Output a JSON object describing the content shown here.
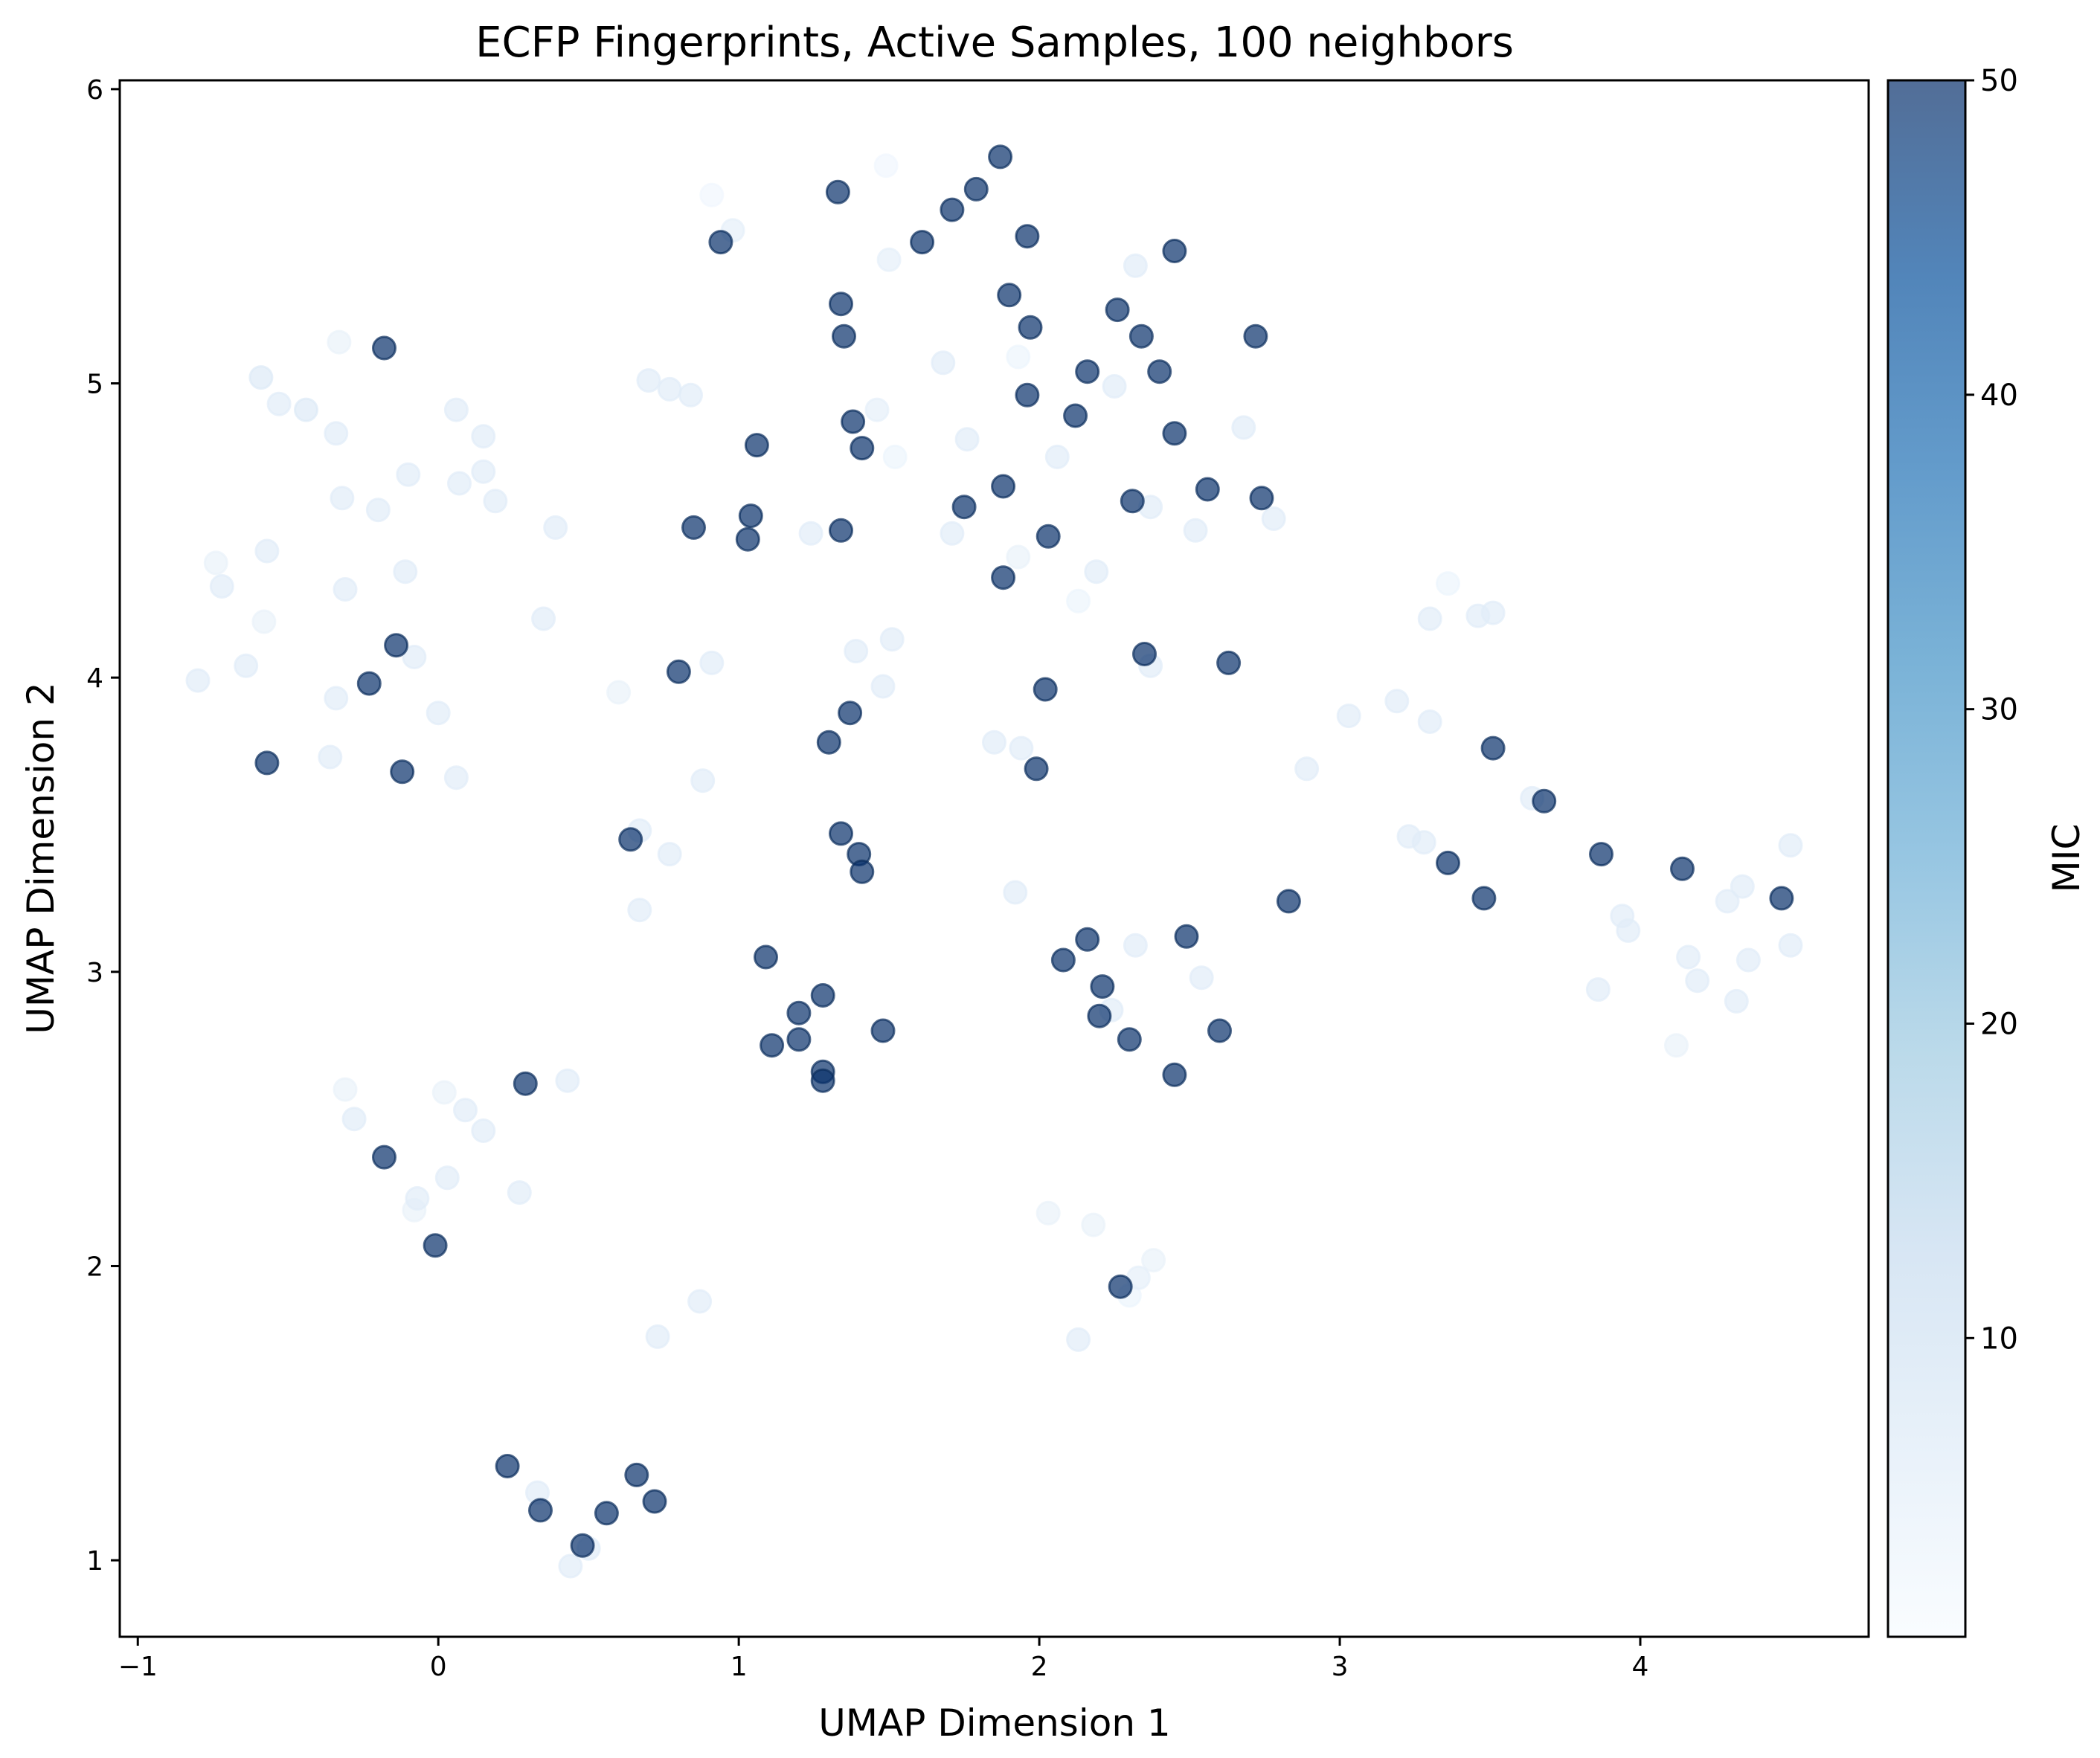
{
  "chart_data": {
    "type": "scatter",
    "title": "ECFP Fingerprints, Active Samples, 100 neighbors",
    "xlabel": "UMAP Dimension 1",
    "ylabel": "UMAP Dimension 2",
    "xlim": [
      -1.06,
      4.76
    ],
    "ylim": [
      0.74,
      6.03
    ],
    "xticks": [
      -1,
      0,
      1,
      2,
      3,
      4
    ],
    "xtick_labels": [
      "−1",
      "0",
      "1",
      "2",
      "3",
      "4"
    ],
    "yticks": [
      1,
      2,
      3,
      4,
      5,
      6
    ],
    "ytick_labels": [
      "1",
      "2",
      "3",
      "4",
      "5",
      "6"
    ],
    "grid": false,
    "legend": "none",
    "colorbar": {
      "label": "MIC",
      "range": [
        0.5,
        50
      ],
      "ticks": [
        10,
        20,
        30,
        40,
        50
      ],
      "tick_labels": [
        "10",
        "20",
        "30",
        "40",
        "50"
      ],
      "colormap": "Blues",
      "alpha": 0.7
    },
    "colors": {
      "low": "#f7fbff",
      "mid_low": "#c6dbef",
      "mid": "#6baed6",
      "mid_high": "#2171b5",
      "high": "#08306b",
      "edge_high": "#0b2e5c"
    },
    "points": [
      {
        "x": 1.87,
        "y": 5.77,
        "mic": 50
      },
      {
        "x": 1.33,
        "y": 5.65,
        "mic": 50
      },
      {
        "x": 1.79,
        "y": 5.66,
        "mic": 50
      },
      {
        "x": 1.71,
        "y": 5.59,
        "mic": 50
      },
      {
        "x": 1.96,
        "y": 5.5,
        "mic": 50
      },
      {
        "x": 0.94,
        "y": 5.48,
        "mic": 50
      },
      {
        "x": 1.61,
        "y": 5.48,
        "mic": 50
      },
      {
        "x": 2.45,
        "y": 5.45,
        "mic": 50
      },
      {
        "x": 1.9,
        "y": 5.3,
        "mic": 50
      },
      {
        "x": 1.34,
        "y": 5.27,
        "mic": 50
      },
      {
        "x": 2.26,
        "y": 5.25,
        "mic": 50
      },
      {
        "x": 1.97,
        "y": 5.19,
        "mic": 50
      },
      {
        "x": 1.35,
        "y": 5.16,
        "mic": 50
      },
      {
        "x": 2.34,
        "y": 5.16,
        "mic": 50
      },
      {
        "x": 2.72,
        "y": 5.16,
        "mic": 50
      },
      {
        "x": -0.18,
        "y": 5.12,
        "mic": 50
      },
      {
        "x": 2.16,
        "y": 5.04,
        "mic": 50
      },
      {
        "x": 2.4,
        "y": 5.04,
        "mic": 50
      },
      {
        "x": 1.96,
        "y": 4.96,
        "mic": 50
      },
      {
        "x": 2.12,
        "y": 4.89,
        "mic": 50
      },
      {
        "x": 1.38,
        "y": 4.87,
        "mic": 50
      },
      {
        "x": 2.45,
        "y": 4.83,
        "mic": 50
      },
      {
        "x": 1.06,
        "y": 4.79,
        "mic": 50
      },
      {
        "x": 1.41,
        "y": 4.78,
        "mic": 50
      },
      {
        "x": 1.88,
        "y": 4.65,
        "mic": 50
      },
      {
        "x": 2.56,
        "y": 4.64,
        "mic": 50
      },
      {
        "x": 2.74,
        "y": 4.61,
        "mic": 50
      },
      {
        "x": 2.31,
        "y": 4.6,
        "mic": 50
      },
      {
        "x": 1.75,
        "y": 4.58,
        "mic": 50
      },
      {
        "x": 1.04,
        "y": 4.55,
        "mic": 50
      },
      {
        "x": 0.85,
        "y": 4.51,
        "mic": 50
      },
      {
        "x": 1.34,
        "y": 4.5,
        "mic": 50
      },
      {
        "x": 2.03,
        "y": 4.48,
        "mic": 50
      },
      {
        "x": 1.03,
        "y": 4.47,
        "mic": 50
      },
      {
        "x": 1.88,
        "y": 4.34,
        "mic": 50
      },
      {
        "x": -0.14,
        "y": 4.11,
        "mic": 50
      },
      {
        "x": 2.35,
        "y": 4.08,
        "mic": 50
      },
      {
        "x": 2.63,
        "y": 4.05,
        "mic": 50
      },
      {
        "x": 0.8,
        "y": 4.02,
        "mic": 50
      },
      {
        "x": -0.23,
        "y": 3.98,
        "mic": 50
      },
      {
        "x": 2.02,
        "y": 3.96,
        "mic": 50
      },
      {
        "x": 1.37,
        "y": 3.88,
        "mic": 50
      },
      {
        "x": 1.3,
        "y": 3.78,
        "mic": 50
      },
      {
        "x": 3.51,
        "y": 3.76,
        "mic": 50
      },
      {
        "x": -0.57,
        "y": 3.71,
        "mic": 50
      },
      {
        "x": 1.99,
        "y": 3.69,
        "mic": 50
      },
      {
        "x": -0.12,
        "y": 3.68,
        "mic": 50
      },
      {
        "x": 3.68,
        "y": 3.58,
        "mic": 50
      },
      {
        "x": 1.34,
        "y": 3.47,
        "mic": 50
      },
      {
        "x": 0.64,
        "y": 3.45,
        "mic": 50
      },
      {
        "x": 3.87,
        "y": 3.4,
        "mic": 50
      },
      {
        "x": 1.4,
        "y": 3.4,
        "mic": 50
      },
      {
        "x": 3.36,
        "y": 3.37,
        "mic": 50
      },
      {
        "x": 4.14,
        "y": 3.35,
        "mic": 50
      },
      {
        "x": 1.41,
        "y": 3.34,
        "mic": 50
      },
      {
        "x": 3.48,
        "y": 3.25,
        "mic": 50
      },
      {
        "x": 4.47,
        "y": 3.25,
        "mic": 50
      },
      {
        "x": 2.83,
        "y": 3.24,
        "mic": 50
      },
      {
        "x": 2.49,
        "y": 3.12,
        "mic": 50
      },
      {
        "x": 2.16,
        "y": 3.11,
        "mic": 50
      },
      {
        "x": 1.09,
        "y": 3.05,
        "mic": 50
      },
      {
        "x": 2.08,
        "y": 3.04,
        "mic": 50
      },
      {
        "x": 2.21,
        "y": 2.95,
        "mic": 50
      },
      {
        "x": 1.28,
        "y": 2.92,
        "mic": 50
      },
      {
        "x": 1.2,
        "y": 2.86,
        "mic": 50
      },
      {
        "x": 2.2,
        "y": 2.85,
        "mic": 50
      },
      {
        "x": 1.48,
        "y": 2.8,
        "mic": 50
      },
      {
        "x": 2.6,
        "y": 2.8,
        "mic": 50
      },
      {
        "x": 1.2,
        "y": 2.77,
        "mic": 50
      },
      {
        "x": 2.3,
        "y": 2.77,
        "mic": 50
      },
      {
        "x": 1.11,
        "y": 2.75,
        "mic": 50
      },
      {
        "x": 1.28,
        "y": 2.66,
        "mic": 50
      },
      {
        "x": 2.45,
        "y": 2.65,
        "mic": 50
      },
      {
        "x": 1.28,
        "y": 2.63,
        "mic": 50
      },
      {
        "x": 0.29,
        "y": 2.62,
        "mic": 50
      },
      {
        "x": -0.18,
        "y": 2.37,
        "mic": 50
      },
      {
        "x": -0.01,
        "y": 2.07,
        "mic": 50
      },
      {
        "x": 2.27,
        "y": 1.93,
        "mic": 50
      },
      {
        "x": 0.23,
        "y": 1.32,
        "mic": 50
      },
      {
        "x": 0.66,
        "y": 1.29,
        "mic": 50
      },
      {
        "x": 0.72,
        "y": 1.2,
        "mic": 50
      },
      {
        "x": 0.34,
        "y": 1.17,
        "mic": 50
      },
      {
        "x": 0.56,
        "y": 1.16,
        "mic": 50
      },
      {
        "x": 0.48,
        "y": 1.05,
        "mic": 50
      },
      {
        "x": 1.49,
        "y": 5.74,
        "mic": 2
      },
      {
        "x": 0.91,
        "y": 5.64,
        "mic": 2
      },
      {
        "x": 0.98,
        "y": 5.52,
        "mic": 5
      },
      {
        "x": 1.5,
        "y": 5.42,
        "mic": 5
      },
      {
        "x": 2.32,
        "y": 5.4,
        "mic": 6
      },
      {
        "x": -0.33,
        "y": 5.14,
        "mic": 4
      },
      {
        "x": 1.68,
        "y": 5.07,
        "mic": 6
      },
      {
        "x": 1.93,
        "y": 5.09,
        "mic": 3
      },
      {
        "x": -0.59,
        "y": 5.02,
        "mic": 7
      },
      {
        "x": 0.7,
        "y": 5.01,
        "mic": 6
      },
      {
        "x": 0.77,
        "y": 4.98,
        "mic": 6
      },
      {
        "x": 2.25,
        "y": 4.99,
        "mic": 6
      },
      {
        "x": 0.84,
        "y": 4.96,
        "mic": 6
      },
      {
        "x": -0.53,
        "y": 4.93,
        "mic": 6
      },
      {
        "x": -0.44,
        "y": 4.91,
        "mic": 7
      },
      {
        "x": 0.06,
        "y": 4.91,
        "mic": 6
      },
      {
        "x": 1.46,
        "y": 4.91,
        "mic": 5
      },
      {
        "x": 2.68,
        "y": 4.85,
        "mic": 6
      },
      {
        "x": -0.34,
        "y": 4.83,
        "mic": 6
      },
      {
        "x": 0.15,
        "y": 4.82,
        "mic": 6
      },
      {
        "x": 1.76,
        "y": 4.81,
        "mic": 6
      },
      {
        "x": 2.06,
        "y": 4.75,
        "mic": 6
      },
      {
        "x": 1.52,
        "y": 4.75,
        "mic": 3
      },
      {
        "x": 0.15,
        "y": 4.7,
        "mic": 6
      },
      {
        "x": -0.1,
        "y": 4.69,
        "mic": 6
      },
      {
        "x": 0.07,
        "y": 4.66,
        "mic": 6
      },
      {
        "x": -0.32,
        "y": 4.61,
        "mic": 6
      },
      {
        "x": 0.19,
        "y": 4.6,
        "mic": 6
      },
      {
        "x": -0.2,
        "y": 4.57,
        "mic": 6
      },
      {
        "x": 2.37,
        "y": 4.58,
        "mic": 6
      },
      {
        "x": 2.78,
        "y": 4.54,
        "mic": 6
      },
      {
        "x": 0.39,
        "y": 4.51,
        "mic": 6
      },
      {
        "x": 2.52,
        "y": 4.5,
        "mic": 6
      },
      {
        "x": 1.24,
        "y": 4.49,
        "mic": 6
      },
      {
        "x": 1.71,
        "y": 4.49,
        "mic": 6
      },
      {
        "x": -0.57,
        "y": 4.43,
        "mic": 6
      },
      {
        "x": 1.93,
        "y": 4.41,
        "mic": 4
      },
      {
        "x": -0.74,
        "y": 4.39,
        "mic": 4
      },
      {
        "x": -0.11,
        "y": 4.36,
        "mic": 6
      },
      {
        "x": 2.19,
        "y": 4.36,
        "mic": 6
      },
      {
        "x": 3.36,
        "y": 4.32,
        "mic": 3
      },
      {
        "x": -0.72,
        "y": 4.31,
        "mic": 6
      },
      {
        "x": -0.31,
        "y": 4.3,
        "mic": 6
      },
      {
        "x": 2.13,
        "y": 4.26,
        "mic": 3
      },
      {
        "x": 3.46,
        "y": 4.21,
        "mic": 6
      },
      {
        "x": 3.51,
        "y": 4.22,
        "mic": 6
      },
      {
        "x": 3.3,
        "y": 4.2,
        "mic": 6
      },
      {
        "x": 0.35,
        "y": 4.2,
        "mic": 6
      },
      {
        "x": -0.58,
        "y": 4.19,
        "mic": 4
      },
      {
        "x": 1.51,
        "y": 4.13,
        "mic": 6
      },
      {
        "x": 1.39,
        "y": 4.09,
        "mic": 6
      },
      {
        "x": -0.08,
        "y": 4.07,
        "mic": 6
      },
      {
        "x": 0.91,
        "y": 4.05,
        "mic": 6
      },
      {
        "x": -0.64,
        "y": 4.04,
        "mic": 6
      },
      {
        "x": 2.37,
        "y": 4.04,
        "mic": 6
      },
      {
        "x": -0.8,
        "y": 3.99,
        "mic": 6
      },
      {
        "x": 1.48,
        "y": 3.97,
        "mic": 6
      },
      {
        "x": 0.6,
        "y": 3.95,
        "mic": 4
      },
      {
        "x": -0.34,
        "y": 3.93,
        "mic": 6
      },
      {
        "x": 3.19,
        "y": 3.92,
        "mic": 6
      },
      {
        "x": 0.0,
        "y": 3.88,
        "mic": 6
      },
      {
        "x": 3.03,
        "y": 3.87,
        "mic": 6
      },
      {
        "x": 3.3,
        "y": 3.85,
        "mic": 6
      },
      {
        "x": 1.85,
        "y": 3.78,
        "mic": 6
      },
      {
        "x": 1.94,
        "y": 3.76,
        "mic": 6
      },
      {
        "x": -0.36,
        "y": 3.73,
        "mic": 6
      },
      {
        "x": 2.89,
        "y": 3.69,
        "mic": 6
      },
      {
        "x": 0.06,
        "y": 3.66,
        "mic": 6
      },
      {
        "x": 0.88,
        "y": 3.65,
        "mic": 6
      },
      {
        "x": 3.64,
        "y": 3.59,
        "mic": 6
      },
      {
        "x": 0.67,
        "y": 3.48,
        "mic": 6
      },
      {
        "x": 3.23,
        "y": 3.46,
        "mic": 6
      },
      {
        "x": 3.28,
        "y": 3.44,
        "mic": 6
      },
      {
        "x": 4.5,
        "y": 3.43,
        "mic": 6
      },
      {
        "x": 0.77,
        "y": 3.4,
        "mic": 6
      },
      {
        "x": 4.34,
        "y": 3.29,
        "mic": 6
      },
      {
        "x": 1.92,
        "y": 3.27,
        "mic": 6
      },
      {
        "x": 4.29,
        "y": 3.24,
        "mic": 6
      },
      {
        "x": 0.67,
        "y": 3.21,
        "mic": 6
      },
      {
        "x": 3.94,
        "y": 3.19,
        "mic": 6
      },
      {
        "x": 3.96,
        "y": 3.14,
        "mic": 6
      },
      {
        "x": 2.32,
        "y": 3.09,
        "mic": 6
      },
      {
        "x": 4.5,
        "y": 3.09,
        "mic": 6
      },
      {
        "x": 4.16,
        "y": 3.05,
        "mic": 6
      },
      {
        "x": 4.36,
        "y": 3.04,
        "mic": 6
      },
      {
        "x": 2.54,
        "y": 2.98,
        "mic": 6
      },
      {
        "x": 4.19,
        "y": 2.97,
        "mic": 6
      },
      {
        "x": 3.86,
        "y": 2.94,
        "mic": 6
      },
      {
        "x": 4.32,
        "y": 2.9,
        "mic": 6
      },
      {
        "x": 2.24,
        "y": 2.87,
        "mic": 6
      },
      {
        "x": 4.12,
        "y": 2.75,
        "mic": 4
      },
      {
        "x": 0.43,
        "y": 2.63,
        "mic": 6
      },
      {
        "x": -0.31,
        "y": 2.6,
        "mic": 4
      },
      {
        "x": 0.02,
        "y": 2.59,
        "mic": 4
      },
      {
        "x": 0.09,
        "y": 2.53,
        "mic": 6
      },
      {
        "x": -0.28,
        "y": 2.5,
        "mic": 6
      },
      {
        "x": 0.15,
        "y": 2.46,
        "mic": 6
      },
      {
        "x": 0.03,
        "y": 2.3,
        "mic": 6
      },
      {
        "x": 0.27,
        "y": 2.25,
        "mic": 6
      },
      {
        "x": -0.07,
        "y": 2.23,
        "mic": 6
      },
      {
        "x": -0.08,
        "y": 2.19,
        "mic": 4
      },
      {
        "x": 2.03,
        "y": 2.18,
        "mic": 4
      },
      {
        "x": 2.18,
        "y": 2.14,
        "mic": 4
      },
      {
        "x": 2.38,
        "y": 2.02,
        "mic": 4
      },
      {
        "x": 2.33,
        "y": 1.96,
        "mic": 5
      },
      {
        "x": 2.3,
        "y": 1.9,
        "mic": 3
      },
      {
        "x": 0.87,
        "y": 1.88,
        "mic": 6
      },
      {
        "x": 0.73,
        "y": 1.76,
        "mic": 6
      },
      {
        "x": 2.13,
        "y": 1.75,
        "mic": 6
      },
      {
        "x": 0.33,
        "y": 1.23,
        "mic": 6
      },
      {
        "x": 0.5,
        "y": 1.04,
        "mic": 6
      },
      {
        "x": 0.44,
        "y": 0.98,
        "mic": 6
      }
    ]
  }
}
